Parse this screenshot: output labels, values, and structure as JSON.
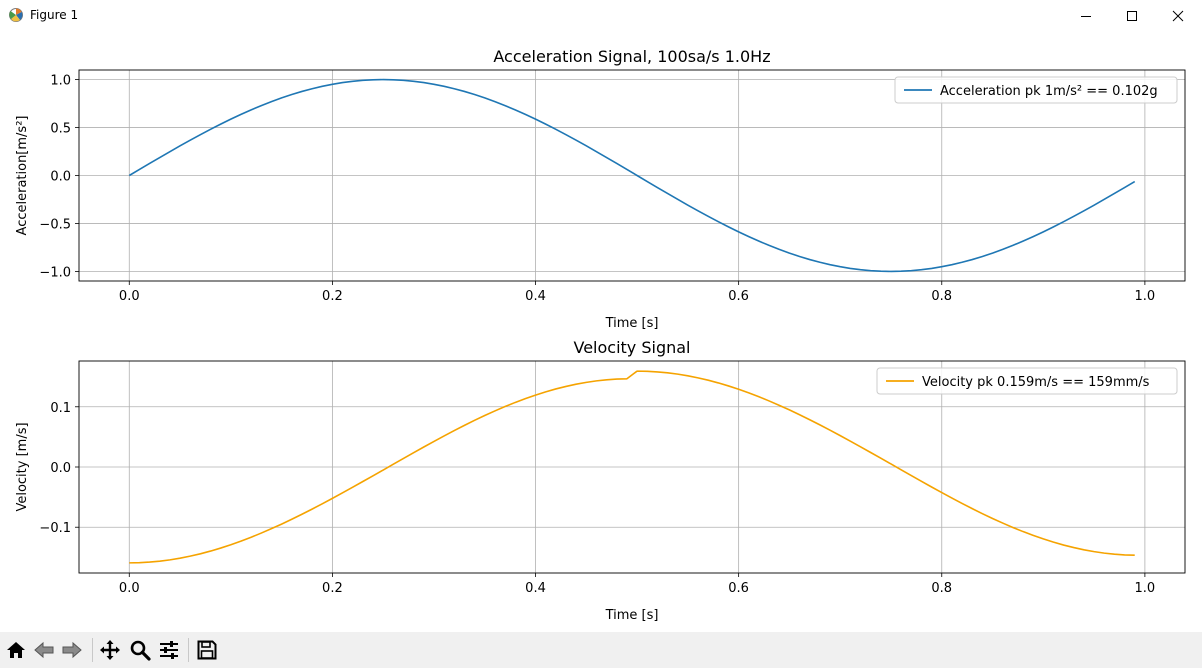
{
  "window": {
    "title": "Figure 1",
    "controls": [
      "minimize",
      "maximize",
      "close"
    ]
  },
  "toolbar": {
    "buttons": [
      {
        "name": "home",
        "icon": "home-icon"
      },
      {
        "name": "back",
        "icon": "arrow-left-icon"
      },
      {
        "name": "forward",
        "icon": "arrow-right-icon"
      },
      {
        "name": "pan",
        "icon": "move-icon"
      },
      {
        "name": "zoom",
        "icon": "magnifier-icon"
      },
      {
        "name": "configure-subplots",
        "icon": "sliders-icon"
      },
      {
        "name": "save",
        "icon": "floppy-disk-icon"
      }
    ]
  },
  "chart_data": [
    {
      "type": "line",
      "title": "Acceleration Signal, 100sa/s 1.0Hz",
      "xlabel": "Time [s]",
      "ylabel": "Acceleration[m/s²]",
      "xlim": [
        -0.0495,
        1.0395
      ],
      "ylim": [
        -1.1,
        1.1
      ],
      "xticks": [
        0.0,
        0.2,
        0.4,
        0.6,
        0.8,
        1.0
      ],
      "xtick_labels": [
        "0.0",
        "0.2",
        "0.4",
        "0.6",
        "0.8",
        "1.0"
      ],
      "yticks": [
        1.0,
        0.5,
        0.0,
        -0.5,
        -1.0
      ],
      "ytick_labels": [
        "1.0",
        "0.5",
        "0.0",
        "−0.5",
        "−1.0"
      ],
      "grid": true,
      "legend_position": "upper right",
      "series": [
        {
          "name": "Acceleration  pk 1m/s² == 0.102g",
          "color": "#1f77b4",
          "x": [
            0.0,
            0.01,
            0.02,
            0.03,
            0.04,
            0.05,
            0.06,
            0.07,
            0.08,
            0.09,
            0.1,
            0.11,
            0.12,
            0.13,
            0.14,
            0.15,
            0.16,
            0.17,
            0.18,
            0.19,
            0.2,
            0.21,
            0.22,
            0.23,
            0.24,
            0.25,
            0.26,
            0.27,
            0.28,
            0.29,
            0.3,
            0.31,
            0.32,
            0.33,
            0.34,
            0.35,
            0.36,
            0.37,
            0.38,
            0.39,
            0.4,
            0.41,
            0.42,
            0.43,
            0.44,
            0.45,
            0.46,
            0.47,
            0.48,
            0.49,
            0.5,
            0.51,
            0.52,
            0.53,
            0.54,
            0.55,
            0.56,
            0.57,
            0.58,
            0.59,
            0.6,
            0.61,
            0.62,
            0.63,
            0.64,
            0.65,
            0.66,
            0.67,
            0.68,
            0.69,
            0.7,
            0.71,
            0.72,
            0.73,
            0.74,
            0.75,
            0.76,
            0.77,
            0.78,
            0.79,
            0.8,
            0.81,
            0.82,
            0.83,
            0.84,
            0.85,
            0.86,
            0.87,
            0.88,
            0.89,
            0.9,
            0.91,
            0.92,
            0.93,
            0.94,
            0.95,
            0.96,
            0.97,
            0.98,
            0.99
          ],
          "y": [
            0.0,
            0.0628,
            0.1253,
            0.1874,
            0.2487,
            0.309,
            0.3681,
            0.4258,
            0.4818,
            0.5358,
            0.5878,
            0.6374,
            0.6845,
            0.729,
            0.7705,
            0.809,
            0.8443,
            0.8763,
            0.9048,
            0.9298,
            0.9511,
            0.9686,
            0.9823,
            0.9921,
            0.998,
            1.0,
            0.998,
            0.9921,
            0.9823,
            0.9686,
            0.9511,
            0.9298,
            0.9048,
            0.8763,
            0.8443,
            0.809,
            0.7705,
            0.729,
            0.6845,
            0.6374,
            0.5878,
            0.5358,
            0.4818,
            0.4258,
            0.3681,
            0.309,
            0.2487,
            0.1874,
            0.1253,
            0.0628,
            0.0,
            -0.0628,
            -0.1253,
            -0.1874,
            -0.2487,
            -0.309,
            -0.3681,
            -0.4258,
            -0.4818,
            -0.5358,
            -0.5878,
            -0.6374,
            -0.6845,
            -0.729,
            -0.7705,
            -0.809,
            -0.8443,
            -0.8763,
            -0.9048,
            -0.9298,
            -0.9511,
            -0.9686,
            -0.9823,
            -0.9921,
            -0.998,
            -1.0,
            -0.998,
            -0.9921,
            -0.9823,
            -0.9686,
            -0.9511,
            -0.9298,
            -0.9048,
            -0.8763,
            -0.8443,
            -0.809,
            -0.7705,
            -0.729,
            -0.6845,
            -0.6374,
            -0.5878,
            -0.5358,
            -0.4818,
            -0.4258,
            -0.3681,
            -0.309,
            -0.2487,
            -0.1874,
            -0.1253,
            -0.0628
          ]
        }
      ]
    },
    {
      "type": "line",
      "title": "Velocity Signal",
      "xlabel": "Time [s]",
      "ylabel": "Velocity [m/s]",
      "xlim": [
        -0.0495,
        1.0395
      ],
      "ylim": [
        -0.176,
        0.176
      ],
      "xticks": [
        0.0,
        0.2,
        0.4,
        0.6,
        0.8,
        1.0
      ],
      "xtick_labels": [
        "0.0",
        "0.2",
        "0.4",
        "0.6",
        "0.8",
        "1.0"
      ],
      "yticks": [
        0.1,
        0.0,
        -0.1
      ],
      "ytick_labels": [
        "0.1",
        "0.0",
        "−0.1"
      ],
      "grid": true,
      "legend_position": "upper right",
      "series": [
        {
          "name": "Velocity  pk 0.159m/s == 159mm/s",
          "color": "#f5a300",
          "x": [
            0.0,
            0.01,
            0.02,
            0.03,
            0.04,
            0.05,
            0.06,
            0.07,
            0.08,
            0.09,
            0.1,
            0.11,
            0.12,
            0.13,
            0.14,
            0.15,
            0.16,
            0.17,
            0.18,
            0.19,
            0.2,
            0.21,
            0.22,
            0.23,
            0.24,
            0.25,
            0.26,
            0.27,
            0.28,
            0.29,
            0.3,
            0.31,
            0.32,
            0.33,
            0.34,
            0.35,
            0.36,
            0.37,
            0.38,
            0.39,
            0.4,
            0.41,
            0.42,
            0.43,
            0.44,
            0.45,
            0.46,
            0.47,
            0.48,
            0.49,
            0.5,
            0.51,
            0.52,
            0.53,
            0.54,
            0.55,
            0.56,
            0.57,
            0.58,
            0.59,
            0.6,
            0.61,
            0.62,
            0.63,
            0.64,
            0.65,
            0.66,
            0.67,
            0.68,
            0.69,
            0.7,
            0.71,
            0.72,
            0.73,
            0.74,
            0.75,
            0.76,
            0.77,
            0.78,
            0.79,
            0.8,
            0.81,
            0.82,
            0.83,
            0.84,
            0.85,
            0.86,
            0.87,
            0.88,
            0.89,
            0.9,
            0.91,
            0.92,
            0.93,
            0.94,
            0.95,
            0.96,
            0.97,
            0.98,
            0.99
          ],
          "y": [
            -0.1592,
            -0.1589,
            -0.1579,
            -0.1564,
            -0.1542,
            -0.1514,
            -0.148,
            -0.1441,
            -0.1396,
            -0.1346,
            -0.1291,
            -0.1231,
            -0.1166,
            -0.1097,
            -0.1024,
            -0.0948,
            -0.0868,
            -0.0785,
            -0.0699,
            -0.0611,
            -0.0521,
            -0.0429,
            -0.0335,
            -0.0241,
            -0.0146,
            -0.005,
            0.0046,
            0.0142,
            0.0237,
            0.0332,
            0.0424,
            0.0516,
            0.0605,
            0.0691,
            0.0775,
            0.0855,
            0.0931,
            0.1004,
            0.1072,
            0.1135,
            0.1194,
            0.1248,
            0.1296,
            0.1338,
            0.1375,
            0.1405,
            0.143,
            0.1448,
            0.146,
            0.1465,
            0.1592,
            0.1589,
            0.1579,
            0.1564,
            0.1542,
            0.1514,
            0.148,
            0.1441,
            0.1396,
            0.1346,
            0.1291,
            0.1231,
            0.1166,
            0.1097,
            0.1024,
            0.0948,
            0.0868,
            0.0785,
            0.0699,
            0.0611,
            0.0521,
            0.0429,
            0.0335,
            0.0241,
            0.0146,
            0.005,
            -0.0046,
            -0.0142,
            -0.0237,
            -0.0332,
            -0.0424,
            -0.0516,
            -0.0605,
            -0.0691,
            -0.0775,
            -0.0855,
            -0.0931,
            -0.1004,
            -0.1072,
            -0.1135,
            -0.1194,
            -0.1248,
            -0.1296,
            -0.1338,
            -0.1375,
            -0.1405,
            -0.143,
            -0.1448,
            -0.146,
            -0.1465
          ]
        }
      ]
    }
  ]
}
